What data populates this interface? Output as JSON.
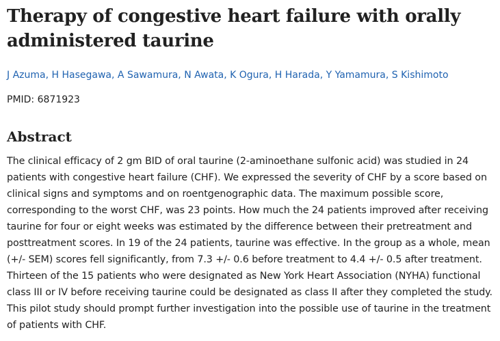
{
  "article": {
    "title": "Therapy of congestive heart failure with orally administered taurine",
    "authors": [
      "J Azuma",
      "H Hasegawa",
      "A Sawamura",
      "N Awata",
      "K Ogura",
      "H Harada",
      "Y Yamamura",
      "S Kishimoto"
    ],
    "pmid_label": "PMID: 6871923",
    "abstract_heading": "Abstract",
    "abstract_text": "The clinical efficacy of 2 gm BID of oral taurine (2-aminoethane sulfonic acid) was studied in 24 patients with congestive heart failure (CHF). We expressed the severity of CHF by a score based on clinical signs and symptoms and on roentgenographic data. The maximum possible score, corresponding to the worst CHF, was 23 points. How much the 24 patients improved after receiving taurine for four or eight weeks was estimated by the difference between their pretreatment and posttreatment scores. In 19 of the 24 patients, taurine was effective. In the group as a whole, mean (+/- SEM) scores fell significantly, from 7.3 +/- 0.6 before treatment to 4.4 +/- 0.5 after treatment. Thirteen of the 15 patients who were designated as New York Heart Association (NYHA) functional class III or IV before receiving taurine could be designated as class II after they completed the study. This pilot study should prompt further investigation into the possible use of taurine in the treatment of patients with CHF."
  },
  "colors": {
    "text": "#212121",
    "link": "#1f62b0"
  }
}
